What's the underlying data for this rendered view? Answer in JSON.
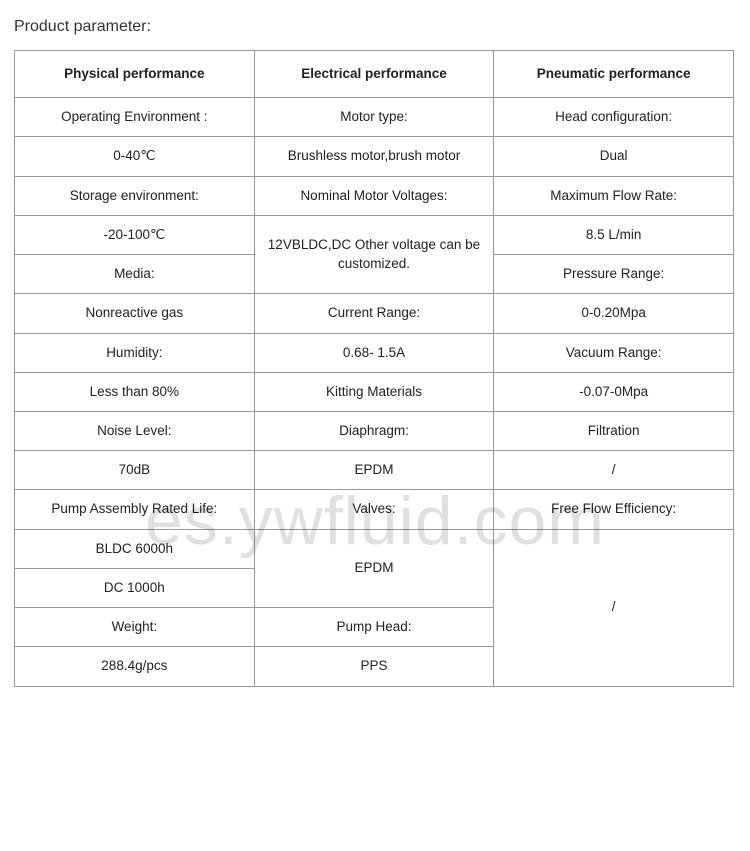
{
  "title": "Product parameter:",
  "headers": {
    "col1": "Physical performance",
    "col2": "Electrical performance",
    "col3": "Pneumatic performance"
  },
  "col1": {
    "r1": "Operating Environment :",
    "r2": "0-40℃",
    "r3": "Storage environment:",
    "r4": "-20-100℃",
    "r5": "Media:",
    "r6": "Nonreactive gas",
    "r7": "Humidity:",
    "r8": "Less than 80%",
    "r9": "Noise Level:",
    "r10": "70dB",
    "r11": "Pump Assembly Rated Life:",
    "r12": "BLDC 6000h",
    "r13": "DC 1000h",
    "r14": "Weight:",
    "r15": "288.4g/pcs"
  },
  "col2": {
    "r1": "Motor type:",
    "r2": "Brushless motor,brush motor",
    "r3": "Nominal Motor Voltages:",
    "r4_5": "12VBLDC,DC Other voltage can be customized.",
    "r6": "Current Range:",
    "r7": "0.68- 1.5A",
    "r8": "Kitting Materials",
    "r9": "Diaphragm:",
    "r10": "EPDM",
    "r11": "Valves:",
    "r12_13": "EPDM",
    "r14": "Pump Head:",
    "r15": "PPS"
  },
  "col3": {
    "r1": "Head configuration:",
    "r2": "Dual",
    "r3": "Maximum Flow Rate:",
    "r4": "8.5 L/min",
    "r5": "Pressure Range:",
    "r6": "0-0.20Mpa",
    "r7": "Vacuum Range:",
    "r8": "-0.07-0Mpa",
    "r9": "Filtration",
    "r10": "/",
    "r11": "Free Flow Efficiency:",
    "r12_15": "/"
  },
  "watermark": "es.ywfluid.com"
}
